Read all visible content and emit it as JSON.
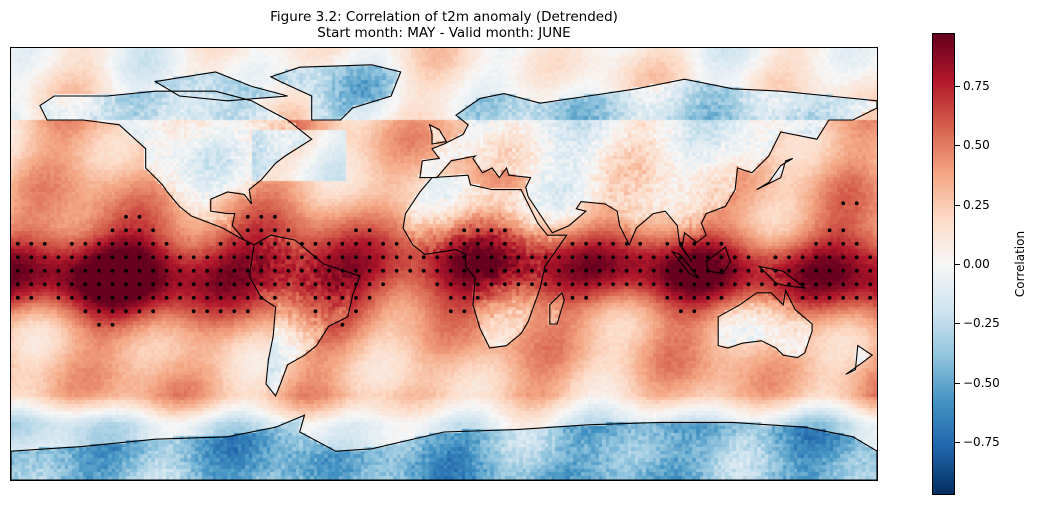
{
  "figure": {
    "title_line1": "Figure 3.2: Correlation of t2m anomaly (Detrended)",
    "title_line2": "Start month: MAY - Valid month: JUNE"
  },
  "map": {
    "projection": "PlateCarree",
    "extent_lon": [
      -180,
      180
    ],
    "extent_lat": [
      -90,
      90
    ],
    "coastlines": true,
    "stippling": true
  },
  "colorbar": {
    "label": "Correlation",
    "colormap": "RdBu_r",
    "vmin": -0.97,
    "vmax": 0.97,
    "ticks": [
      {
        "value": 0.75,
        "label": "0.75"
      },
      {
        "value": 0.5,
        "label": "0.50"
      },
      {
        "value": 0.25,
        "label": "0.25"
      },
      {
        "value": 0.0,
        "label": "0.00"
      },
      {
        "value": -0.25,
        "label": "−0.25"
      },
      {
        "value": -0.5,
        "label": "−0.50"
      },
      {
        "value": -0.75,
        "label": "−0.75"
      }
    ],
    "colors": [
      "#053061",
      "#2166ac",
      "#4393c3",
      "#92c5de",
      "#d1e5f0",
      "#f7f7f7",
      "#fddbc7",
      "#f4a582",
      "#d6604d",
      "#b2182b",
      "#67001f"
    ]
  }
}
